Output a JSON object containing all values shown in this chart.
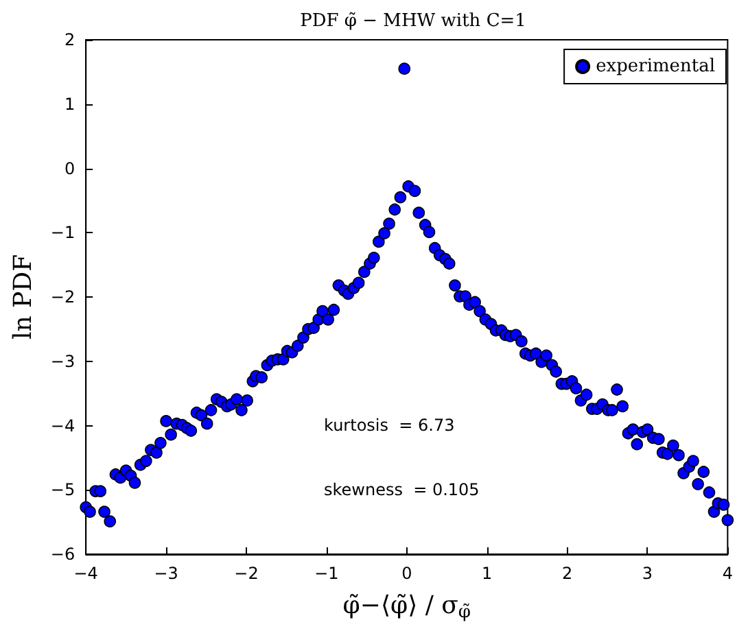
{
  "chart_data": {
    "type": "scatter",
    "title": "PDF φ̃ − MHW with C=1",
    "xlabel": "φ̃−⟨φ̃⟩ / σ$_{φ̃}$",
    "ylabel": "ln PDF",
    "annotations": [
      "kurtosis  = 6.73",
      "skewness  = 0.105"
    ],
    "series": [
      {
        "name": "experimental",
        "color": "#0000ff",
        "x": [
          -4.0,
          -3.95,
          -3.88,
          -3.82,
          -3.77,
          -3.7,
          -3.63,
          -3.57,
          -3.5,
          -3.44,
          -3.39,
          -3.32,
          -3.25,
          -3.19,
          -3.12,
          -3.07,
          -3.0,
          -2.94,
          -2.87,
          -2.8,
          -2.74,
          -2.69,
          -2.62,
          -2.56,
          -2.49,
          -2.44,
          -2.37,
          -2.31,
          -2.24,
          -2.19,
          -2.12,
          -2.06,
          -1.99,
          -1.92,
          -1.88,
          -1.81,
          -1.74,
          -1.68,
          -1.61,
          -1.54,
          -1.49,
          -1.43,
          -1.36,
          -1.29,
          -1.23,
          -1.16,
          -1.1,
          -1.05,
          -0.98,
          -0.91,
          -0.85,
          -0.78,
          -0.73,
          -0.66,
          -0.6,
          -0.53,
          -0.46,
          -0.41,
          -0.35,
          -0.28,
          -0.22,
          -0.15,
          -0.08,
          -0.03,
          0.02,
          0.1,
          0.15,
          0.23,
          0.28,
          0.35,
          0.41,
          0.48,
          0.53,
          0.6,
          0.66,
          0.73,
          0.78,
          0.85,
          0.91,
          0.98,
          1.05,
          1.11,
          1.18,
          1.23,
          1.29,
          1.36,
          1.43,
          1.48,
          1.54,
          1.61,
          1.68,
          1.74,
          1.81,
          1.86,
          1.93,
          1.99,
          2.06,
          2.11,
          2.17,
          2.24,
          2.31,
          2.37,
          2.44,
          2.51,
          2.56,
          2.62,
          2.69,
          2.76,
          2.82,
          2.87,
          2.94,
          3.0,
          3.07,
          3.14,
          3.19,
          3.25,
          3.32,
          3.39,
          3.45,
          3.52,
          3.57,
          3.63,
          3.7,
          3.77,
          3.83,
          3.88,
          3.95,
          4.0
        ],
        "values": [
          -5.27,
          -5.34,
          -5.02,
          -5.02,
          -5.34,
          -5.49,
          -4.76,
          -4.81,
          -4.7,
          -4.78,
          -4.89,
          -4.61,
          -4.55,
          -4.38,
          -4.42,
          -4.27,
          -3.93,
          -4.14,
          -3.97,
          -3.99,
          -4.04,
          -4.08,
          -3.8,
          -3.84,
          -3.97,
          -3.76,
          -3.59,
          -3.63,
          -3.7,
          -3.67,
          -3.59,
          -3.76,
          -3.61,
          -3.31,
          -3.23,
          -3.25,
          -3.06,
          -2.99,
          -2.97,
          -2.97,
          -2.84,
          -2.86,
          -2.76,
          -2.63,
          -2.5,
          -2.48,
          -2.35,
          -2.22,
          -2.35,
          -2.2,
          -1.82,
          -1.9,
          -1.95,
          -1.86,
          -1.78,
          -1.61,
          -1.48,
          -1.39,
          -1.14,
          -1.01,
          -0.86,
          -0.64,
          -0.45,
          1.55,
          -0.28,
          -0.35,
          -0.69,
          -0.88,
          -0.99,
          -1.24,
          -1.35,
          -1.41,
          -1.48,
          -1.82,
          -1.99,
          -1.99,
          -2.12,
          -2.08,
          -2.22,
          -2.35,
          -2.42,
          -2.52,
          -2.52,
          -2.59,
          -2.61,
          -2.59,
          -2.69,
          -2.88,
          -2.91,
          -2.88,
          -3.01,
          -2.91,
          -3.06,
          -3.16,
          -3.35,
          -3.35,
          -3.31,
          -3.42,
          -3.61,
          -3.52,
          -3.74,
          -3.74,
          -3.67,
          -3.76,
          -3.76,
          -3.44,
          -3.7,
          -4.12,
          -4.06,
          -4.29,
          -4.1,
          -4.06,
          -4.19,
          -4.21,
          -4.42,
          -4.44,
          -4.31,
          -4.46,
          -4.74,
          -4.64,
          -4.55,
          -4.91,
          -4.72,
          -5.04,
          -5.34,
          -5.21,
          -5.23,
          -5.47
        ]
      }
    ],
    "xlim": [
      -4,
      4
    ],
    "xticks": [
      -4,
      -3,
      -2,
      -1,
      0,
      1,
      2,
      3,
      4
    ],
    "ylim": [
      -6,
      2
    ],
    "yticks": [
      -6,
      -5,
      -4,
      -3,
      -2,
      -1,
      0,
      1,
      2
    ],
    "grid": false,
    "legend": "top right",
    "marker": "circle"
  }
}
